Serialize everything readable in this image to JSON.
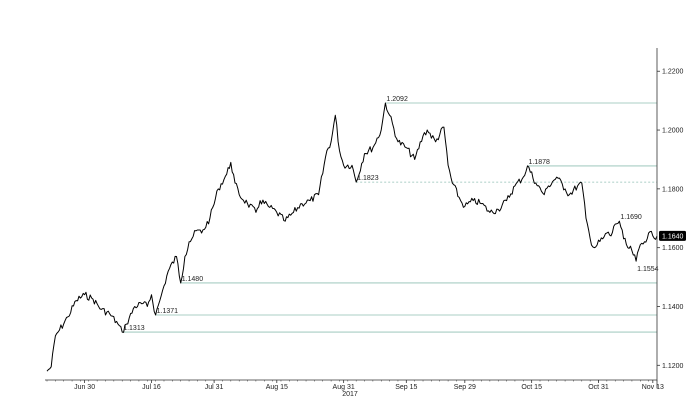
{
  "chart_data": {
    "type": "line",
    "xlabel": "2017",
    "x_ticks": [
      "Jun 30",
      "Jul 16",
      "Jul 31",
      "Aug 15",
      "Aug 31",
      "Sep 15",
      "Sep 29",
      "Oct 15",
      "Oct 31",
      "Nov 13"
    ],
    "y_ticks": [
      "1.2200",
      "1.2000",
      "1.1800",
      "1.1600",
      "1.1400",
      "1.1200"
    ],
    "ylim": [
      1.115,
      1.2245
    ],
    "grid": false,
    "last_value": "1.1640",
    "series": [
      {
        "points": [
          [
            "Jun 21",
            1.118
          ],
          [
            "Jun 22",
            1.1195
          ],
          [
            "Jun 23",
            1.13
          ],
          [
            "Jun 24",
            1.132
          ],
          [
            "Jun 26",
            1.1365
          ],
          [
            "Jun 28",
            1.142
          ],
          [
            "Jun 30",
            1.144
          ],
          [
            "Jul 2",
            1.1425
          ],
          [
            "Jul 4",
            1.139
          ],
          [
            "Jul 6",
            1.1375
          ],
          [
            "Jul 8",
            1.134
          ],
          [
            "Jul 9",
            1.1313
          ],
          [
            "Jul 10",
            1.134
          ],
          [
            "Jul 12",
            1.14
          ],
          [
            "Jul 14",
            1.141
          ],
          [
            "Jul 15",
            1.14
          ],
          [
            "Jul 16",
            1.144
          ],
          [
            "Jul 17",
            1.1371
          ],
          [
            "Jul 18",
            1.142
          ],
          [
            "Jul 19",
            1.147
          ],
          [
            "Jul 20",
            1.152
          ],
          [
            "Jul 22",
            1.157
          ],
          [
            "Jul 23",
            1.148
          ],
          [
            "Jul 24",
            1.157
          ],
          [
            "Jul 25",
            1.162
          ],
          [
            "Jul 27",
            1.166
          ],
          [
            "Jul 28",
            1.165
          ],
          [
            "Jul 30",
            1.17
          ],
          [
            "Aug 1",
            1.18
          ],
          [
            "Aug 3",
            1.185
          ],
          [
            "Aug 4",
            1.189
          ],
          [
            "Aug 5",
            1.182
          ],
          [
            "Aug 6",
            1.178
          ],
          [
            "Aug 8",
            1.175
          ],
          [
            "Aug 10",
            1.172
          ],
          [
            "Aug 11",
            1.176
          ],
          [
            "Aug 13",
            1.174
          ],
          [
            "Aug 15",
            1.172
          ],
          [
            "Aug 17",
            1.169
          ],
          [
            "Aug 19",
            1.172
          ],
          [
            "Aug 21",
            1.175
          ],
          [
            "Aug 23",
            1.176
          ],
          [
            "Aug 25",
            1.178
          ],
          [
            "Aug 27",
            1.193
          ],
          [
            "Aug 28",
            1.196
          ],
          [
            "Aug 29",
            1.205
          ],
          [
            "Aug 30",
            1.193
          ],
          [
            "Aug 31",
            1.188
          ],
          [
            "Sep 2",
            1.188
          ],
          [
            "Sep 3",
            1.1823
          ],
          [
            "Sep 5",
            1.192
          ],
          [
            "Sep 7",
            1.194
          ],
          [
            "Sep 9",
            1.2
          ],
          [
            "Sep 10",
            1.2092
          ],
          [
            "Sep 11",
            1.205
          ],
          [
            "Sep 13",
            1.196
          ],
          [
            "Sep 15",
            1.194
          ],
          [
            "Sep 17",
            1.19
          ],
          [
            "Sep 19",
            1.198
          ],
          [
            "Sep 20",
            1.2
          ],
          [
            "Sep 22",
            1.196
          ],
          [
            "Sep 24",
            1.201
          ],
          [
            "Sep 25",
            1.188
          ],
          [
            "Sep 26",
            1.182
          ],
          [
            "Sep 28",
            1.176
          ],
          [
            "Sep 29",
            1.174
          ],
          [
            "Oct 1",
            1.176
          ],
          [
            "Oct 3",
            1.175
          ],
          [
            "Oct 5",
            1.172
          ],
          [
            "Oct 7",
            1.173
          ],
          [
            "Oct 9",
            1.176
          ],
          [
            "Oct 11",
            1.181
          ],
          [
            "Oct 13",
            1.184
          ],
          [
            "Oct 14",
            1.1878
          ],
          [
            "Oct 16",
            1.182
          ],
          [
            "Oct 18",
            1.178
          ],
          [
            "Oct 19",
            1.181
          ],
          [
            "Oct 21",
            1.184
          ],
          [
            "Oct 23",
            1.18
          ],
          [
            "Oct 24",
            1.178
          ],
          [
            "Oct 26",
            1.181
          ],
          [
            "Oct 27",
            1.182
          ],
          [
            "Oct 28",
            1.17
          ],
          [
            "Oct 29",
            1.163
          ],
          [
            "Oct 30",
            1.16
          ],
          [
            "Nov 1",
            1.163
          ],
          [
            "Nov 2",
            1.165
          ],
          [
            "Nov 3",
            1.164
          ],
          [
            "Nov 4",
            1.168
          ],
          [
            "Nov 5",
            1.169
          ],
          [
            "Nov 6",
            1.163
          ],
          [
            "Nov 7",
            1.16
          ],
          [
            "Nov 8",
            1.159
          ],
          [
            "Nov 9",
            1.1554
          ],
          [
            "Nov 10",
            1.161
          ],
          [
            "Nov 11",
            1.162
          ],
          [
            "Nov 12",
            1.165
          ],
          [
            "Nov 13",
            1.164
          ],
          [
            "Nov 14",
            1.164
          ]
        ]
      }
    ],
    "annotations": [
      {
        "label": "1.2092",
        "x": "Sep 10",
        "y": 1.2092,
        "line_to": "end",
        "dashed": false
      },
      {
        "label": "1.1823",
        "x": "Sep 3",
        "y": 1.1823,
        "line_to": "end",
        "dashed": true
      },
      {
        "label": "1.1878",
        "x": "Oct 14",
        "y": 1.1878,
        "line_to": "end",
        "dashed": false
      },
      {
        "label": "1.1690",
        "x": "Nov 5",
        "y": 1.169,
        "line_to": "none",
        "dashed": false
      },
      {
        "label": "1.1554",
        "x": "Nov 9",
        "y": 1.1554,
        "line_to": "none",
        "dashed": false
      },
      {
        "label": "1.1480",
        "x": "Jul 23",
        "y": 1.148,
        "line_to": "end",
        "dashed": false
      },
      {
        "label": "1.1371",
        "x": "Jul 17",
        "y": 1.1371,
        "line_to": "end",
        "dashed": false
      },
      {
        "label": "1.1313",
        "x": "Jul 9",
        "y": 1.1313,
        "line_to": "end",
        "dashed": false
      }
    ],
    "colors": {
      "line": "#000000",
      "hline": "#8fbfb3",
      "axis": "#333333",
      "label": "#222222",
      "last_value_bg": "#000000",
      "last_value_text": "#ffffff"
    }
  }
}
